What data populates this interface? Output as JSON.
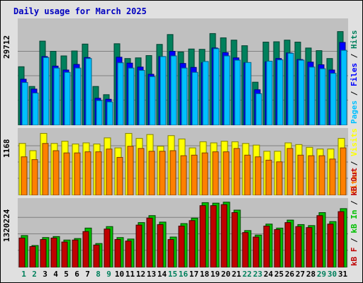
{
  "title": "Daily usage for March 2025",
  "colors": {
    "hits": "#00805c",
    "files": "#0000ff",
    "pages": "#00c0ff",
    "visits": "#ffff00",
    "sites": "#ff8000",
    "kbin": "#00c000",
    "kbout": "#c00000",
    "weekday_label": "#000000",
    "weekend_label": "#00805c"
  },
  "legends": {
    "top": [
      {
        "text": "Pages",
        "color": "#00c0ff"
      },
      {
        "text": " / ",
        "color": "#000000"
      },
      {
        "text": "Files",
        "color": "#0000ff"
      },
      {
        "text": " / ",
        "color": "#000000"
      },
      {
        "text": "Hits",
        "color": "#00805c"
      }
    ],
    "middle": [
      {
        "text": "Sites",
        "color": "#ff8000"
      },
      {
        "text": " / ",
        "color": "#000000"
      },
      {
        "text": "Visits",
        "color": "#ffff00"
      }
    ],
    "bottom": [
      {
        "text": "kB F",
        "color": "#c00000"
      },
      {
        "text": " / ",
        "color": "#000000"
      },
      {
        "text": "kB In",
        "color": "#00c000"
      },
      {
        "text": " / ",
        "color": "#000000"
      },
      {
        "text": "kB Out",
        "color": "#c00000"
      }
    ]
  },
  "chart_data": [
    {
      "type": "bar",
      "panel": "hits-files-pages",
      "ymax_label": "29712",
      "ylim": [
        0,
        29712
      ],
      "days": [
        "1",
        "2",
        "3",
        "4",
        "5",
        "6",
        "7",
        "8",
        "9",
        "10",
        "11",
        "12",
        "13",
        "14",
        "15",
        "16",
        "17",
        "18",
        "19",
        "20",
        "21",
        "22",
        "23",
        "24",
        "25",
        "26",
        "27",
        "28",
        "29",
        "30",
        "31"
      ],
      "weekend_days": [
        1,
        2,
        8,
        9,
        15,
        16,
        22,
        23,
        29,
        30
      ],
      "series": [
        {
          "name": "Hits",
          "values": [
            17800,
            11800,
            25600,
            22500,
            21100,
            22600,
            24700,
            11800,
            9300,
            24800,
            20300,
            20500,
            21200,
            24600,
            27600,
            22300,
            23200,
            23100,
            27900,
            26600,
            25900,
            24200,
            13100,
            25300,
            25400,
            25900,
            25300,
            23500,
            22700,
            20300,
            28500
          ]
        },
        {
          "name": "Files",
          "values": [
            14000,
            11000,
            20900,
            18000,
            16800,
            18500,
            20600,
            8200,
            7900,
            20700,
            18900,
            17700,
            15500,
            20900,
            22500,
            18800,
            17600,
            19000,
            23500,
            22100,
            20500,
            19000,
            10800,
            19300,
            20300,
            22000,
            20000,
            19200,
            18400,
            16800,
            25200
          ]
        },
        {
          "name": "Pages",
          "values": [
            13000,
            9800,
            20600,
            17400,
            16100,
            17400,
            20300,
            7500,
            7100,
            19000,
            17400,
            16700,
            14800,
            20900,
            21100,
            17400,
            16100,
            19400,
            23300,
            21100,
            19800,
            19100,
            9600,
            19500,
            19900,
            21900,
            19800,
            17700,
            17200,
            15800,
            22800
          ]
        }
      ]
    },
    {
      "type": "bar",
      "panel": "visits-sites",
      "ymax_label": "1168",
      "ylim": [
        0,
        1168
      ],
      "days": [
        "1",
        "2",
        "3",
        "4",
        "5",
        "6",
        "7",
        "8",
        "9",
        "10",
        "11",
        "12",
        "13",
        "14",
        "15",
        "16",
        "17",
        "18",
        "19",
        "20",
        "21",
        "22",
        "23",
        "24",
        "25",
        "26",
        "27",
        "28",
        "29",
        "30",
        "31"
      ],
      "series": [
        {
          "name": "Visits",
          "values": [
            930,
            800,
            1110,
            930,
            970,
            920,
            940,
            920,
            1030,
            850,
            1110,
            1020,
            1090,
            880,
            1070,
            1010,
            850,
            960,
            940,
            970,
            960,
            930,
            900,
            790,
            790,
            940,
            910,
            860,
            830,
            830,
            1020
          ]
        },
        {
          "name": "Sites",
          "values": [
            690,
            640,
            930,
            800,
            760,
            760,
            780,
            780,
            830,
            680,
            880,
            840,
            790,
            790,
            800,
            710,
            720,
            760,
            780,
            780,
            840,
            720,
            690,
            630,
            600,
            840,
            720,
            710,
            710,
            650,
            850
          ]
        }
      ]
    },
    {
      "type": "bar",
      "panel": "kb-in-out",
      "ymax_label": "1320224",
      "ylim": [
        0,
        1320224
      ],
      "days": [
        "1",
        "2",
        "3",
        "4",
        "5",
        "6",
        "7",
        "8",
        "9",
        "10",
        "11",
        "12",
        "13",
        "14",
        "15",
        "16",
        "17",
        "18",
        "19",
        "20",
        "21",
        "22",
        "23",
        "24",
        "25",
        "26",
        "27",
        "28",
        "29",
        "30",
        "31"
      ],
      "series": [
        {
          "name": "kB In",
          "values": [
            640000,
            440000,
            600000,
            620000,
            550000,
            580000,
            790000,
            480000,
            820000,
            600000,
            570000,
            900000,
            1040000,
            910000,
            610000,
            880000,
            990000,
            1300000,
            1290000,
            1310000,
            1150000,
            740000,
            650000,
            870000,
            790000,
            950000,
            860000,
            840000,
            1100000,
            920000,
            1180000
          ]
        },
        {
          "name": "kB Out",
          "values": [
            590000,
            420000,
            560000,
            590000,
            510000,
            550000,
            720000,
            450000,
            770000,
            560000,
            530000,
            850000,
            990000,
            860000,
            560000,
            830000,
            940000,
            1240000,
            1240000,
            1260000,
            1100000,
            700000,
            610000,
            830000,
            760000,
            900000,
            820000,
            800000,
            1040000,
            870000,
            1120000
          ]
        }
      ]
    }
  ]
}
